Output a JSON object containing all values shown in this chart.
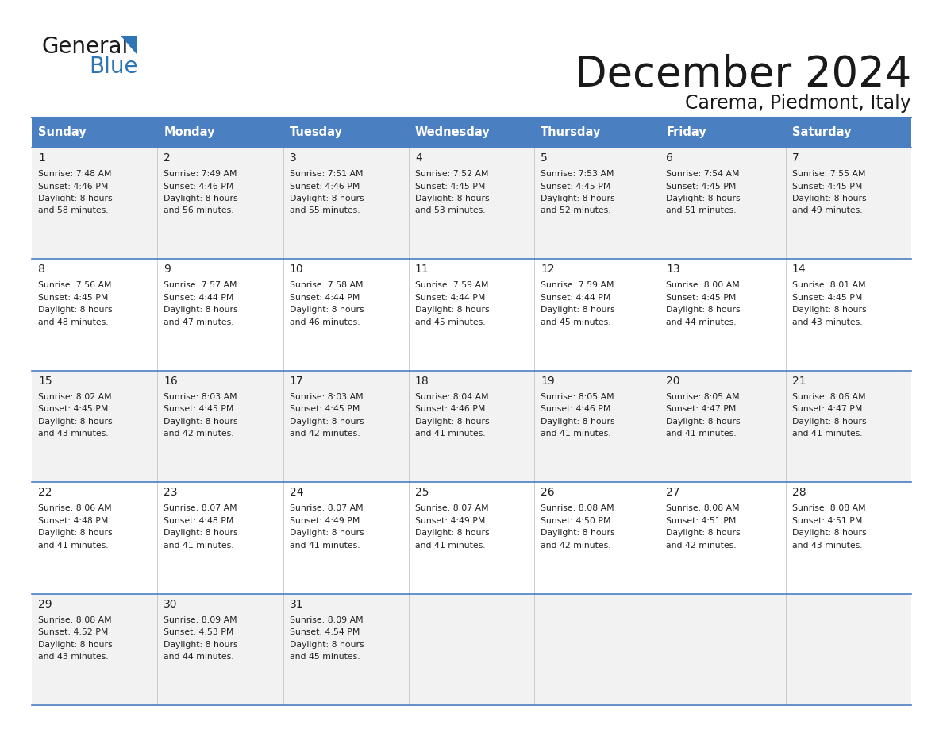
{
  "title": "December 2024",
  "subtitle": "Carema, Piedmont, Italy",
  "header_bg_color": "#4A7FC1",
  "header_text_color": "#FFFFFF",
  "header_font_size": 10.5,
  "day_number_font_size": 10,
  "cell_text_font_size": 7.8,
  "row_colors": [
    "#F2F2F2",
    "#FFFFFF"
  ],
  "days_of_week": [
    "Sunday",
    "Monday",
    "Tuesday",
    "Wednesday",
    "Thursday",
    "Friday",
    "Saturday"
  ],
  "calendar": [
    [
      {
        "day": "1",
        "sunrise": "7:48 AM",
        "sunset": "4:46 PM",
        "daylight_h": "8 hours",
        "daylight_m": "58 minutes"
      },
      {
        "day": "2",
        "sunrise": "7:49 AM",
        "sunset": "4:46 PM",
        "daylight_h": "8 hours",
        "daylight_m": "56 minutes"
      },
      {
        "day": "3",
        "sunrise": "7:51 AM",
        "sunset": "4:46 PM",
        "daylight_h": "8 hours",
        "daylight_m": "55 minutes"
      },
      {
        "day": "4",
        "sunrise": "7:52 AM",
        "sunset": "4:45 PM",
        "daylight_h": "8 hours",
        "daylight_m": "53 minutes"
      },
      {
        "day": "5",
        "sunrise": "7:53 AM",
        "sunset": "4:45 PM",
        "daylight_h": "8 hours",
        "daylight_m": "52 minutes"
      },
      {
        "day": "6",
        "sunrise": "7:54 AM",
        "sunset": "4:45 PM",
        "daylight_h": "8 hours",
        "daylight_m": "51 minutes"
      },
      {
        "day": "7",
        "sunrise": "7:55 AM",
        "sunset": "4:45 PM",
        "daylight_h": "8 hours",
        "daylight_m": "49 minutes"
      }
    ],
    [
      {
        "day": "8",
        "sunrise": "7:56 AM",
        "sunset": "4:45 PM",
        "daylight_h": "8 hours",
        "daylight_m": "48 minutes"
      },
      {
        "day": "9",
        "sunrise": "7:57 AM",
        "sunset": "4:44 PM",
        "daylight_h": "8 hours",
        "daylight_m": "47 minutes"
      },
      {
        "day": "10",
        "sunrise": "7:58 AM",
        "sunset": "4:44 PM",
        "daylight_h": "8 hours",
        "daylight_m": "46 minutes"
      },
      {
        "day": "11",
        "sunrise": "7:59 AM",
        "sunset": "4:44 PM",
        "daylight_h": "8 hours",
        "daylight_m": "45 minutes"
      },
      {
        "day": "12",
        "sunrise": "7:59 AM",
        "sunset": "4:44 PM",
        "daylight_h": "8 hours",
        "daylight_m": "45 minutes"
      },
      {
        "day": "13",
        "sunrise": "8:00 AM",
        "sunset": "4:45 PM",
        "daylight_h": "8 hours",
        "daylight_m": "44 minutes"
      },
      {
        "day": "14",
        "sunrise": "8:01 AM",
        "sunset": "4:45 PM",
        "daylight_h": "8 hours",
        "daylight_m": "43 minutes"
      }
    ],
    [
      {
        "day": "15",
        "sunrise": "8:02 AM",
        "sunset": "4:45 PM",
        "daylight_h": "8 hours",
        "daylight_m": "43 minutes"
      },
      {
        "day": "16",
        "sunrise": "8:03 AM",
        "sunset": "4:45 PM",
        "daylight_h": "8 hours",
        "daylight_m": "42 minutes"
      },
      {
        "day": "17",
        "sunrise": "8:03 AM",
        "sunset": "4:45 PM",
        "daylight_h": "8 hours",
        "daylight_m": "42 minutes"
      },
      {
        "day": "18",
        "sunrise": "8:04 AM",
        "sunset": "4:46 PM",
        "daylight_h": "8 hours",
        "daylight_m": "41 minutes"
      },
      {
        "day": "19",
        "sunrise": "8:05 AM",
        "sunset": "4:46 PM",
        "daylight_h": "8 hours",
        "daylight_m": "41 minutes"
      },
      {
        "day": "20",
        "sunrise": "8:05 AM",
        "sunset": "4:47 PM",
        "daylight_h": "8 hours",
        "daylight_m": "41 minutes"
      },
      {
        "day": "21",
        "sunrise": "8:06 AM",
        "sunset": "4:47 PM",
        "daylight_h": "8 hours",
        "daylight_m": "41 minutes"
      }
    ],
    [
      {
        "day": "22",
        "sunrise": "8:06 AM",
        "sunset": "4:48 PM",
        "daylight_h": "8 hours",
        "daylight_m": "41 minutes"
      },
      {
        "day": "23",
        "sunrise": "8:07 AM",
        "sunset": "4:48 PM",
        "daylight_h": "8 hours",
        "daylight_m": "41 minutes"
      },
      {
        "day": "24",
        "sunrise": "8:07 AM",
        "sunset": "4:49 PM",
        "daylight_h": "8 hours",
        "daylight_m": "41 minutes"
      },
      {
        "day": "25",
        "sunrise": "8:07 AM",
        "sunset": "4:49 PM",
        "daylight_h": "8 hours",
        "daylight_m": "41 minutes"
      },
      {
        "day": "26",
        "sunrise": "8:08 AM",
        "sunset": "4:50 PM",
        "daylight_h": "8 hours",
        "daylight_m": "42 minutes"
      },
      {
        "day": "27",
        "sunrise": "8:08 AM",
        "sunset": "4:51 PM",
        "daylight_h": "8 hours",
        "daylight_m": "42 minutes"
      },
      {
        "day": "28",
        "sunrise": "8:08 AM",
        "sunset": "4:51 PM",
        "daylight_h": "8 hours",
        "daylight_m": "43 minutes"
      }
    ],
    [
      {
        "day": "29",
        "sunrise": "8:08 AM",
        "sunset": "4:52 PM",
        "daylight_h": "8 hours",
        "daylight_m": "43 minutes"
      },
      {
        "day": "30",
        "sunrise": "8:09 AM",
        "sunset": "4:53 PM",
        "daylight_h": "8 hours",
        "daylight_m": "44 minutes"
      },
      {
        "day": "31",
        "sunrise": "8:09 AM",
        "sunset": "4:54 PM",
        "daylight_h": "8 hours",
        "daylight_m": "45 minutes"
      },
      null,
      null,
      null,
      null
    ]
  ]
}
